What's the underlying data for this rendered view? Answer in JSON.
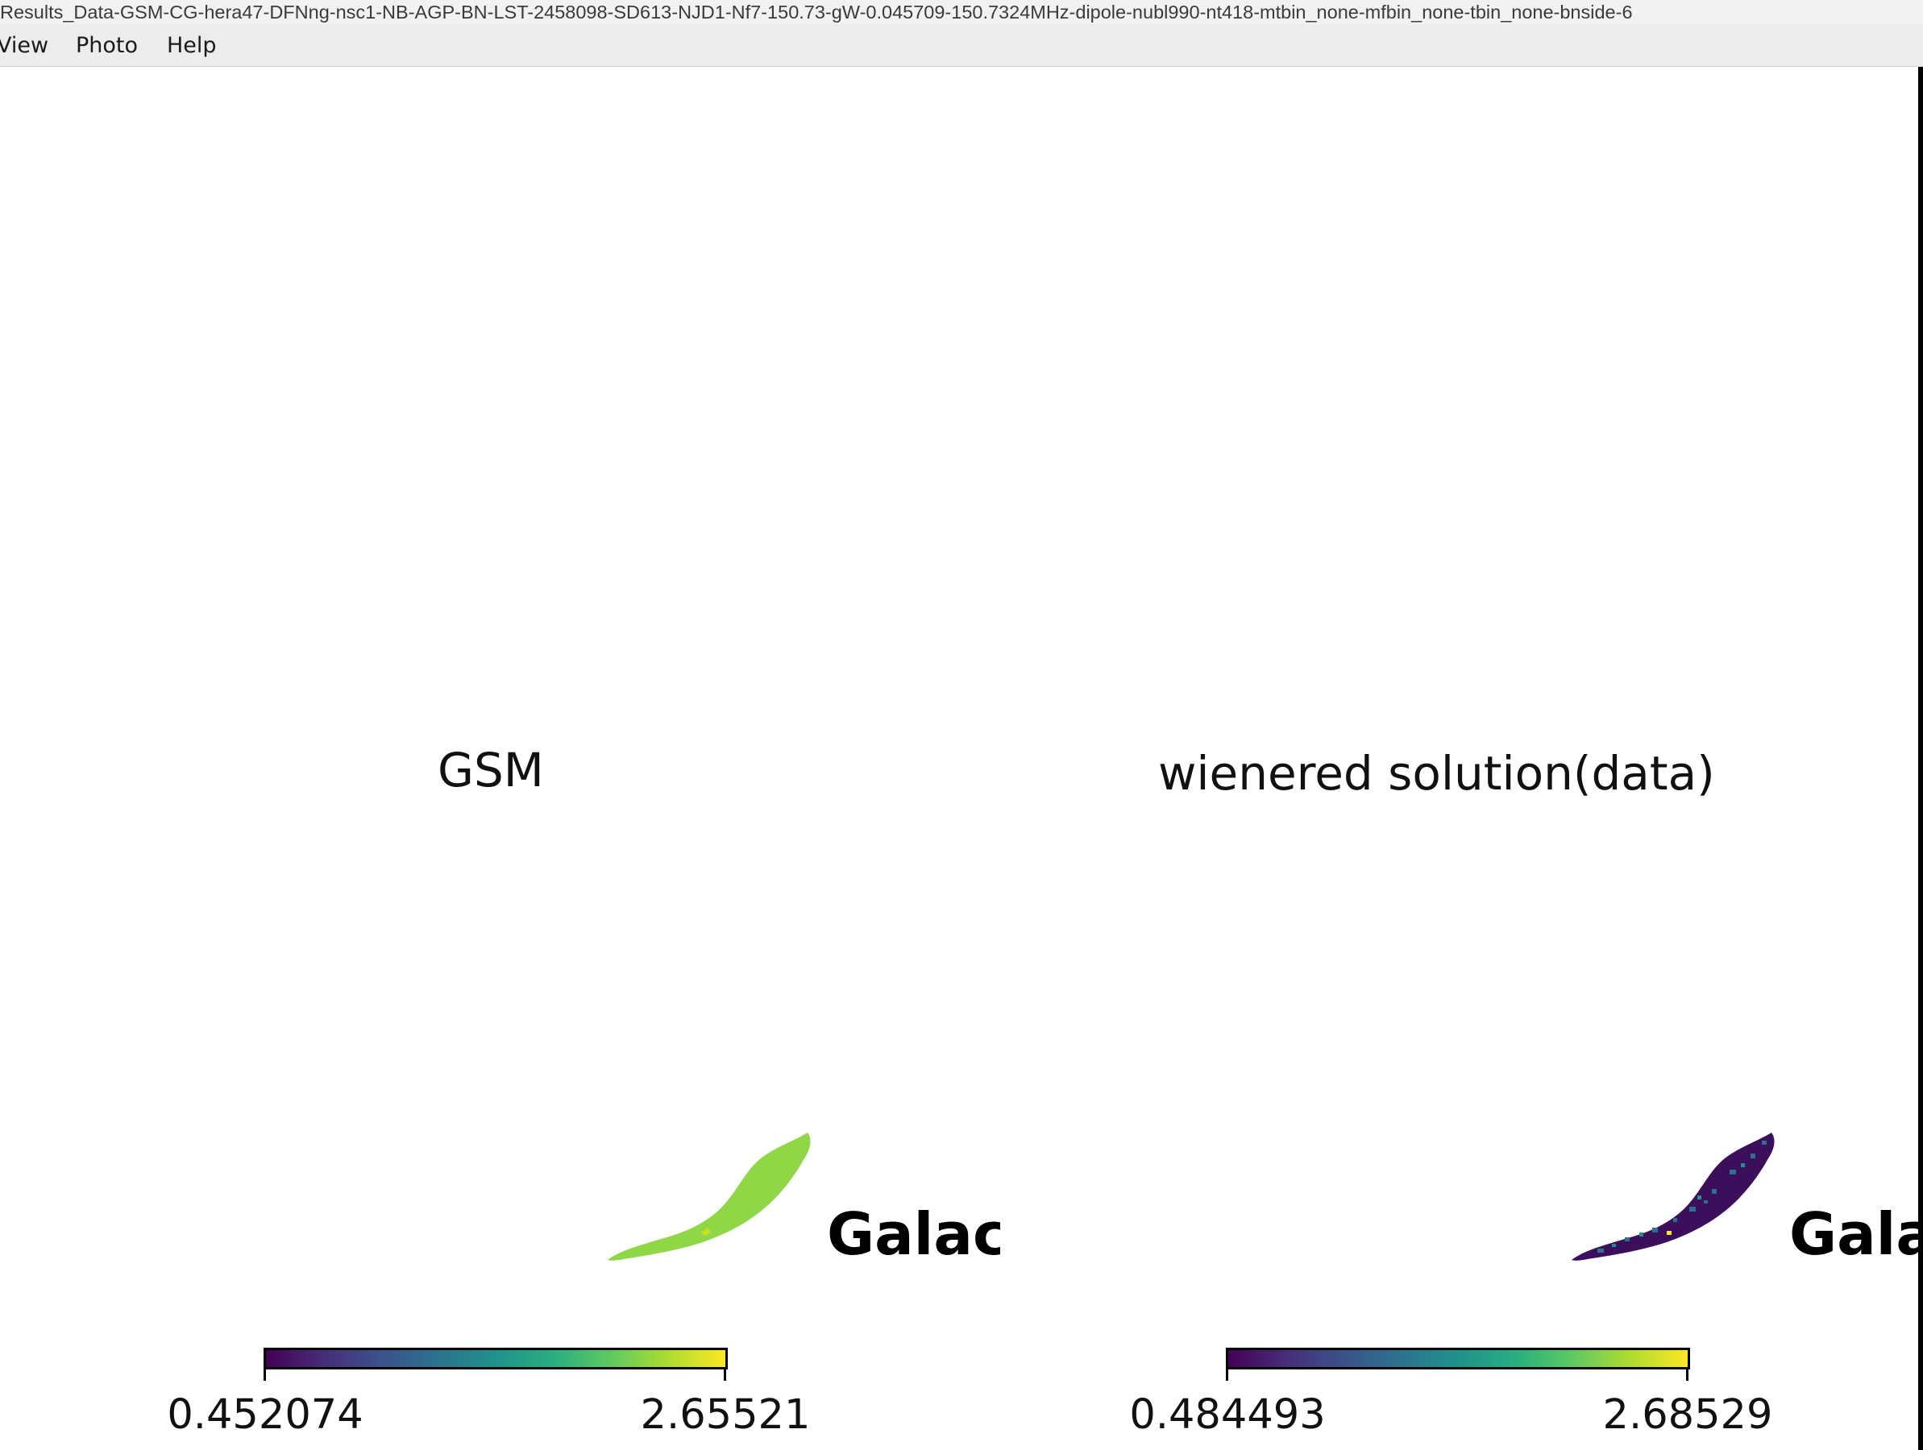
{
  "window": {
    "title": "Results_Data-GSM-CG-hera47-DFNng-nsc1-NB-AGP-BN-LST-2458098-SD613-NJD1-Nf7-150.73-gW-0.045709-150.7324MHz-dipole-nubl990-nt418-mtbin_none-mfbin_none-tbin_none-bnside-6"
  },
  "menu": {
    "items": [
      {
        "label": "View"
      },
      {
        "label": "Photo"
      },
      {
        "label": "Help"
      }
    ]
  },
  "panels": [
    {
      "title": "GSM",
      "annotation": "Galac",
      "colorbar": {
        "min": "0.452074",
        "max": "2.65521",
        "colormap": "viridis"
      },
      "map_color": "#8fd744"
    },
    {
      "title": "wienered solution(data)",
      "annotation": "Galac",
      "colorbar": {
        "min": "0.484493",
        "max": "2.68529",
        "colormap": "viridis"
      },
      "map_color": "#3b0f5c"
    }
  ],
  "colors": {
    "viridis_low": "#440154",
    "viridis_high": "#fde725"
  }
}
